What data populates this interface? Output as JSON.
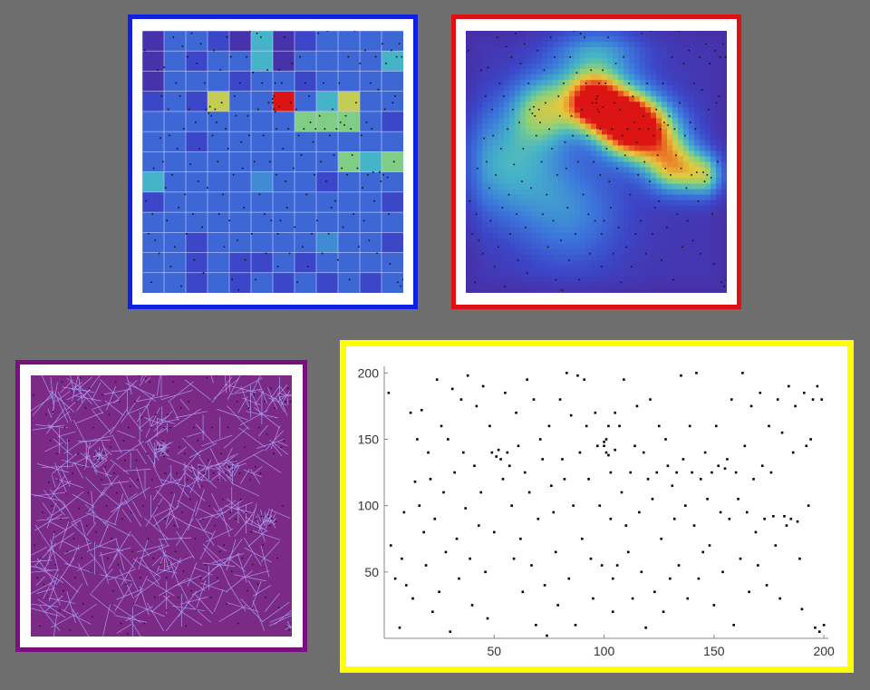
{
  "colors": {
    "background": "#6e6e6e",
    "grid_frame": "#1020e0",
    "heat_frame": "#e01010",
    "voronoi_frame": "#7a0f80",
    "scatter_frame": "#ffff00",
    "grid_line": "#c8d0ff",
    "voronoi_fill": "#7b2a86",
    "voronoi_edge": "#a99bf0",
    "point": "#111111"
  },
  "chart_data": [
    {
      "type": "heatmap",
      "panel": "grid-density",
      "xlim": [
        0,
        200
      ],
      "ylim": [
        0,
        200
      ],
      "grid": true,
      "rows": [
        [
          1,
          3,
          3,
          2,
          1,
          5,
          1,
          2,
          3,
          3,
          3,
          3
        ],
        [
          1,
          3,
          2,
          3,
          3,
          5,
          1,
          3,
          3,
          3,
          3,
          5
        ],
        [
          1,
          3,
          3,
          3,
          2,
          3,
          3,
          2,
          3,
          3,
          3,
          3
        ],
        [
          2,
          3,
          2,
          7,
          3,
          3,
          10,
          3,
          5,
          7,
          3,
          3
        ],
        [
          3,
          3,
          3,
          3,
          3,
          3,
          3,
          6,
          6,
          6,
          3,
          2
        ],
        [
          3,
          3,
          2,
          3,
          3,
          3,
          3,
          3,
          3,
          3,
          3,
          3
        ],
        [
          3,
          3,
          3,
          3,
          3,
          3,
          3,
          3,
          3,
          6,
          5,
          6
        ],
        [
          5,
          3,
          3,
          3,
          3,
          4,
          3,
          3,
          2,
          3,
          3,
          3
        ],
        [
          2,
          3,
          3,
          3,
          3,
          3,
          3,
          3,
          3,
          3,
          3,
          2
        ],
        [
          3,
          3,
          3,
          3,
          3,
          3,
          3,
          3,
          3,
          3,
          3,
          3
        ],
        [
          3,
          3,
          2,
          3,
          3,
          3,
          3,
          3,
          4,
          3,
          3,
          2
        ],
        [
          3,
          3,
          2,
          3,
          2,
          2,
          3,
          2,
          3,
          3,
          3,
          3
        ],
        [
          3,
          3,
          2,
          3,
          2,
          3,
          2,
          3,
          2,
          3,
          2,
          3
        ]
      ],
      "scale": [
        0,
        10
      ]
    },
    {
      "type": "heatmap",
      "panel": "smooth-density",
      "xlim": [
        0,
        200
      ],
      "ylim": [
        0,
        200
      ],
      "grid": false,
      "hotspots": [
        {
          "x": 98,
          "y": 145,
          "weight": 0.85,
          "spread": 14
        },
        {
          "x": 123,
          "y": 130,
          "weight": 1.0,
          "spread": 16
        },
        {
          "x": 145,
          "y": 120,
          "weight": 0.55,
          "spread": 18
        },
        {
          "x": 60,
          "y": 140,
          "weight": 0.45,
          "spread": 18
        },
        {
          "x": 160,
          "y": 95,
          "weight": 0.5,
          "spread": 14
        },
        {
          "x": 185,
          "y": 90,
          "weight": 0.45,
          "spread": 12
        },
        {
          "x": 30,
          "y": 100,
          "weight": 0.35,
          "spread": 30
        },
        {
          "x": 100,
          "y": 180,
          "weight": 0.35,
          "spread": 25
        },
        {
          "x": 80,
          "y": 60,
          "weight": 0.25,
          "spread": 30
        }
      ]
    },
    {
      "type": "scatter",
      "panel": "voronoi",
      "xlim": [
        0,
        200
      ],
      "ylim": [
        0,
        200
      ],
      "grid": false
    },
    {
      "type": "scatter",
      "panel": "points",
      "title": "",
      "xlabel": "",
      "ylabel": "",
      "xlim": [
        0,
        202
      ],
      "ylim": [
        0,
        205
      ],
      "xticks": [
        50,
        100,
        150,
        200
      ],
      "yticks": [
        50,
        100,
        150,
        200
      ],
      "grid": false,
      "series": [
        {
          "x": [
            2,
            3,
            5,
            7,
            8,
            9,
            10,
            12,
            13,
            14,
            15,
            16,
            17,
            18,
            19,
            20,
            21,
            22,
            23,
            24,
            25,
            26,
            27,
            28,
            29,
            30,
            31,
            32,
            33,
            34,
            35,
            36,
            37,
            38,
            39,
            40,
            41,
            42,
            43,
            44,
            45,
            46,
            47,
            48,
            49,
            50,
            51,
            52,
            53,
            54,
            55,
            56,
            57,
            58,
            59,
            60,
            61,
            62,
            63,
            64,
            65,
            66,
            67,
            68,
            69,
            70,
            71,
            72,
            73,
            74,
            75,
            76,
            77,
            78,
            79,
            80,
            81,
            82,
            83,
            84,
            85,
            86,
            87,
            88,
            89,
            90,
            91,
            92,
            93,
            94,
            95,
            96,
            97,
            98,
            99,
            100,
            100,
            101,
            101,
            102,
            102,
            103,
            103,
            104,
            104,
            105,
            105,
            106,
            107,
            108,
            109,
            110,
            111,
            112,
            113,
            114,
            115,
            116,
            117,
            118,
            119,
            120,
            121,
            122,
            123,
            124,
            125,
            126,
            127,
            128,
            129,
            130,
            131,
            132,
            133,
            134,
            135,
            136,
            137,
            138,
            139,
            140,
            141,
            142,
            143,
            144,
            145,
            146,
            147,
            148,
            149,
            150,
            151,
            152,
            153,
            154,
            155,
            156,
            157,
            158,
            159,
            160,
            161,
            162,
            163,
            164,
            165,
            166,
            167,
            168,
            169,
            170,
            171,
            172,
            173,
            174,
            175,
            176,
            177,
            178,
            179,
            180,
            181,
            182,
            183,
            184,
            185,
            186,
            187,
            188,
            189,
            190,
            191,
            192,
            193,
            194,
            195,
            196,
            197,
            198,
            199,
            200
          ],
          "y": [
            185,
            70,
            45,
            8,
            60,
            95,
            40,
            170,
            30,
            118,
            150,
            100,
            172,
            80,
            55,
            140,
            120,
            20,
            90,
            195,
            35,
            160,
            110,
            65,
            150,
            5,
            188,
            125,
            75,
            45,
            180,
            140,
            98,
            198,
            60,
            25,
            130,
            175,
            85,
            110,
            190,
            50,
            15,
            160,
            140,
            80,
            137,
            142,
            135,
            120,
            185,
            140,
            130,
            100,
            60,
            170,
            145,
            75,
            35,
            125,
            195,
            110,
            55,
            180,
            10,
            90,
            150,
            135,
            40,
            2,
            160,
            115,
            95,
            65,
            25,
            180,
            135,
            120,
            200,
            45,
            168,
            100,
            10,
            198,
            140,
            75,
            195,
            160,
            120,
            60,
            30,
            170,
            145,
            100,
            55,
            148,
            145,
            140,
            150,
            138,
            160,
            125,
            90,
            45,
            20,
            142,
            170,
            55,
            160,
            110,
            195,
            85,
            65,
            125,
            30,
            145,
            175,
            95,
            50,
            140,
            8,
            120,
            180,
            105,
            35,
            125,
            160,
            75,
            20,
            150,
            130,
            45,
            115,
            90,
            125,
            55,
            198,
            135,
            100,
            30,
            160,
            125,
            85,
            200,
            45,
            120,
            65,
            140,
            105,
            70,
            125,
            25,
            160,
            130,
            95,
            50,
            128,
            135,
            90,
            180,
            10,
            125,
            105,
            60,
            200,
            145,
            95,
            35,
            175,
            120,
            80,
            55,
            185,
            130,
            90,
            40,
            160,
            125,
            92,
            70,
            180,
            30,
            155,
            92,
            85,
            190,
            90,
            140,
            175,
            88,
            60,
            22,
            185,
            145,
            100,
            150,
            180,
            8,
            190,
            5,
            180,
            10
          ]
        }
      ]
    }
  ]
}
